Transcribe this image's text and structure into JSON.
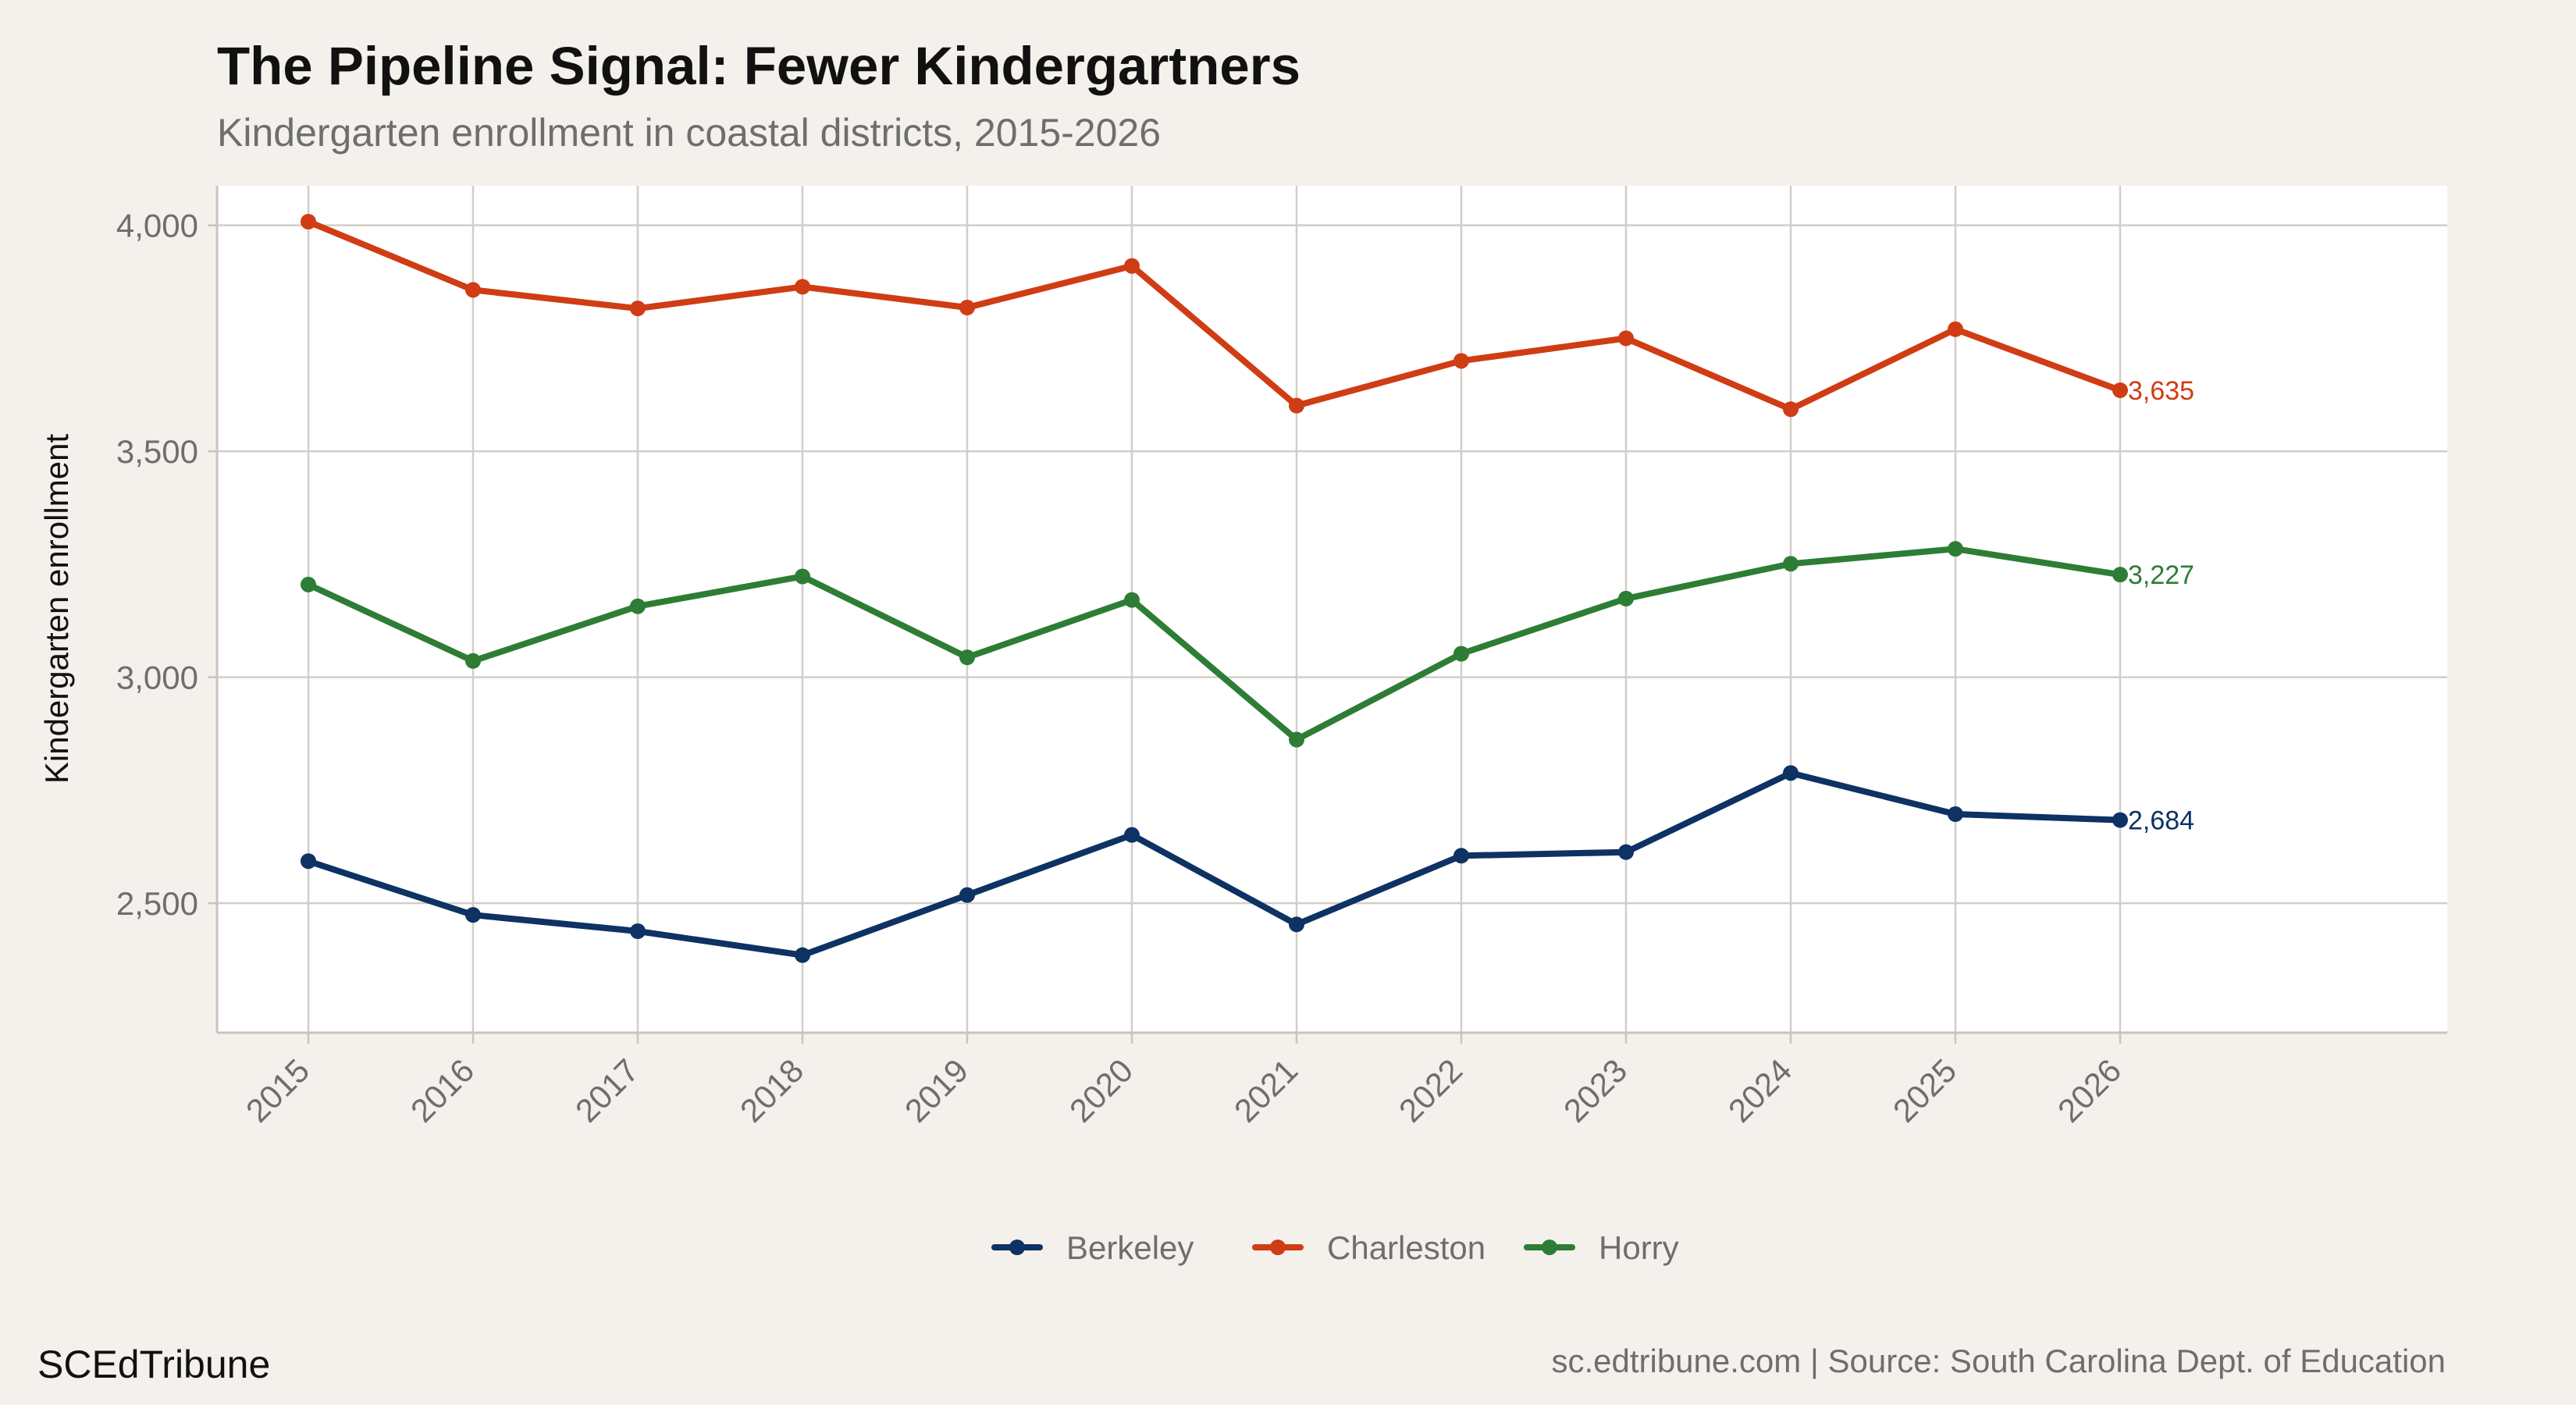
{
  "chart_data": {
    "type": "line",
    "title": "The Pipeline Signal: Fewer Kindergartners",
    "subtitle": "Kindergarten enrollment in coastal districts, 2015-2026",
    "xlabel": "",
    "ylabel": "Kindergarten enrollment",
    "x": [
      "2015",
      "2016",
      "2017",
      "2018",
      "2019",
      "2020",
      "2021",
      "2022",
      "2023",
      "2024",
      "2025",
      "2026"
    ],
    "ylim": [
      2305,
      4008
    ],
    "yticks": [
      2500,
      3000,
      3500,
      4000
    ],
    "ytick_labels": [
      "2,500",
      "3,000",
      "3,500",
      "4,000"
    ],
    "grid": true,
    "legend_position": "bottom",
    "series": [
      {
        "name": "Berkeley",
        "color": "#0d3263",
        "values": [
          2593,
          2474,
          2438,
          2385,
          2518,
          2651,
          2453,
          2605,
          2613,
          2788,
          2697,
          2684
        ],
        "end_label": "2,684"
      },
      {
        "name": "Charleston",
        "color": "#d03c14",
        "values": [
          4008,
          3857,
          3816,
          3864,
          3818,
          3910,
          3601,
          3700,
          3750,
          3593,
          3770,
          3635
        ],
        "end_label": "3,635"
      },
      {
        "name": "Horry",
        "color": "#2e7d35",
        "values": [
          3205,
          3036,
          3157,
          3223,
          3044,
          3171,
          2862,
          3052,
          3174,
          3251,
          3284,
          3227
        ],
        "end_label": "3,227"
      }
    ]
  },
  "footer": {
    "brand": "SCEdTribune",
    "source": "sc.edtribune.com | Source: South Carolina Dept. of Education"
  }
}
